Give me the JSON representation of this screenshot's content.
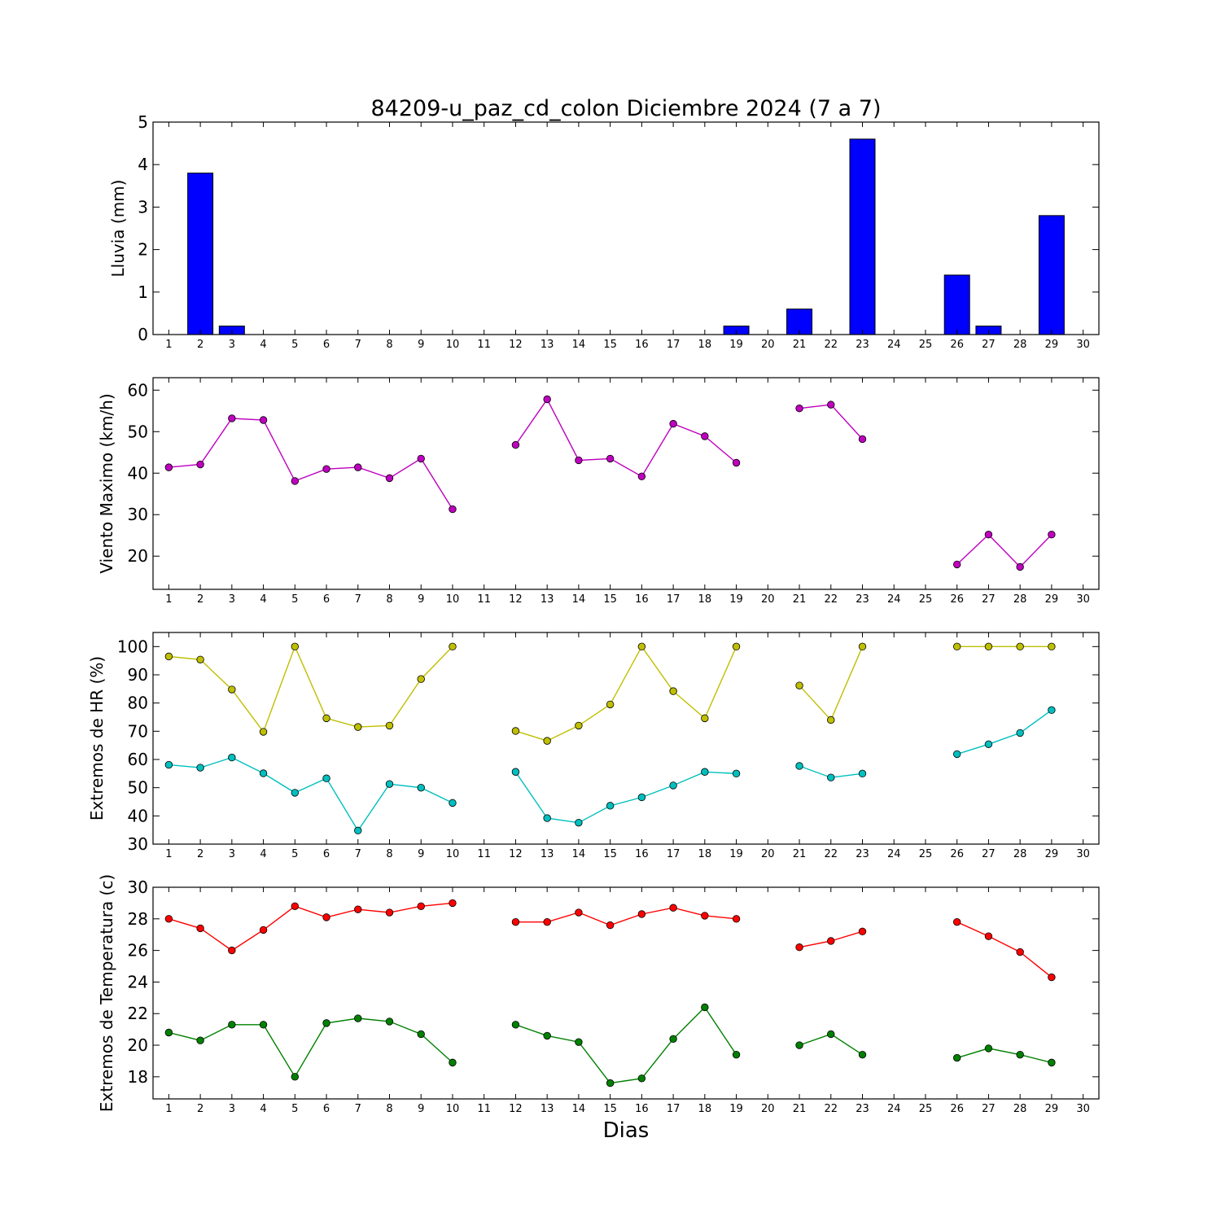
{
  "title": "84209-u_paz_cd_colon Diciembre 2024  (7 a 7)",
  "xlabel": "Dias",
  "colors": {
    "rain": "#0000ff",
    "wind": "#bf00bf",
    "hr_max": "#bfbf00",
    "hr_min": "#00bfbf",
    "temp_max": "#ff0000",
    "temp_min": "#008000"
  },
  "chart_data": [
    {
      "type": "bar",
      "ylabel": "Lluvia (mm)",
      "x": [
        1,
        2,
        3,
        4,
        5,
        6,
        7,
        8,
        9,
        10,
        11,
        12,
        13,
        14,
        15,
        16,
        17,
        18,
        19,
        20,
        21,
        22,
        23,
        24,
        25,
        26,
        27,
        28,
        29,
        30
      ],
      "xlim": [
        0.5,
        30.5
      ],
      "ylim": [
        0,
        5
      ],
      "yticks": [
        0,
        1,
        2,
        3,
        4,
        5
      ],
      "series": [
        {
          "color_key": "rain",
          "values": [
            0,
            3.8,
            0.2,
            0,
            0,
            0,
            0,
            0,
            0,
            0,
            null,
            0,
            0,
            0,
            0,
            0,
            0,
            0,
            0.2,
            null,
            0.6,
            null,
            4.6,
            null,
            null,
            1.4,
            0.2,
            0,
            2.8,
            null
          ]
        }
      ]
    },
    {
      "type": "line",
      "ylabel": "Viento Maximo (km/h)",
      "x": [
        1,
        2,
        3,
        4,
        5,
        6,
        7,
        8,
        9,
        10,
        11,
        12,
        13,
        14,
        15,
        16,
        17,
        18,
        19,
        20,
        21,
        22,
        23,
        24,
        25,
        26,
        27,
        28,
        29,
        30
      ],
      "xlim": [
        0.5,
        30.5
      ],
      "ylim": [
        12,
        63
      ],
      "yticks": [
        20,
        30,
        40,
        50,
        60
      ],
      "series": [
        {
          "color_key": "wind",
          "values": [
            41.4,
            42.1,
            53.2,
            52.8,
            38.1,
            41.0,
            41.4,
            38.8,
            43.5,
            31.3,
            null,
            46.8,
            57.8,
            43.1,
            43.5,
            39.2,
            51.9,
            48.9,
            42.5,
            null,
            55.6,
            56.5,
            48.2,
            null,
            null,
            18.0,
            25.2,
            17.4,
            25.2,
            null
          ]
        }
      ]
    },
    {
      "type": "line",
      "ylabel": "Extremos de HR (%)",
      "x": [
        1,
        2,
        3,
        4,
        5,
        6,
        7,
        8,
        9,
        10,
        11,
        12,
        13,
        14,
        15,
        16,
        17,
        18,
        19,
        20,
        21,
        22,
        23,
        24,
        25,
        26,
        27,
        28,
        29,
        30
      ],
      "xlim": [
        0.5,
        30.5
      ],
      "ylim": [
        30,
        105
      ],
      "yticks": [
        30,
        40,
        50,
        60,
        70,
        80,
        90,
        100
      ],
      "series": [
        {
          "color_key": "hr_max",
          "values": [
            96.5,
            95.4,
            84.8,
            69.8,
            100,
            74.6,
            71.5,
            72.0,
            88.5,
            100,
            null,
            70.1,
            66.6,
            72.0,
            79.5,
            100,
            84.2,
            74.6,
            100,
            null,
            86.2,
            74.0,
            100,
            null,
            null,
            100,
            100,
            100,
            100,
            null
          ]
        },
        {
          "color_key": "hr_min",
          "values": [
            58.1,
            57.1,
            60.7,
            55.1,
            48.2,
            53.3,
            34.8,
            51.3,
            50.0,
            44.6,
            null,
            55.6,
            39.2,
            37.6,
            43.6,
            46.6,
            50.8,
            55.6,
            55.0,
            null,
            57.7,
            53.6,
            55.0,
            null,
            null,
            61.9,
            65.4,
            69.4,
            77.5,
            null
          ]
        }
      ]
    },
    {
      "type": "line",
      "ylabel": "Extremos de Temperatura (c)",
      "x": [
        1,
        2,
        3,
        4,
        5,
        6,
        7,
        8,
        9,
        10,
        11,
        12,
        13,
        14,
        15,
        16,
        17,
        18,
        19,
        20,
        21,
        22,
        23,
        24,
        25,
        26,
        27,
        28,
        29,
        30
      ],
      "xlim": [
        0.5,
        30.5
      ],
      "ylim": [
        16.6,
        30
      ],
      "yticks": [
        18,
        20,
        22,
        24,
        26,
        28,
        30
      ],
      "series": [
        {
          "color_key": "temp_max",
          "values": [
            28.0,
            27.4,
            26.0,
            27.3,
            28.8,
            28.1,
            28.6,
            28.4,
            28.8,
            29.0,
            null,
            27.8,
            27.8,
            28.4,
            27.6,
            28.3,
            28.7,
            28.2,
            28.0,
            null,
            26.2,
            26.6,
            27.2,
            null,
            null,
            27.8,
            26.9,
            25.9,
            24.3,
            null
          ]
        },
        {
          "color_key": "temp_min",
          "values": [
            20.8,
            20.3,
            21.3,
            21.3,
            18.0,
            21.4,
            21.7,
            21.5,
            20.7,
            18.9,
            null,
            21.3,
            20.6,
            20.2,
            17.6,
            17.9,
            20.4,
            22.4,
            19.4,
            null,
            20.0,
            20.7,
            19.4,
            null,
            null,
            19.2,
            19.8,
            19.4,
            18.9,
            null
          ]
        }
      ]
    }
  ]
}
